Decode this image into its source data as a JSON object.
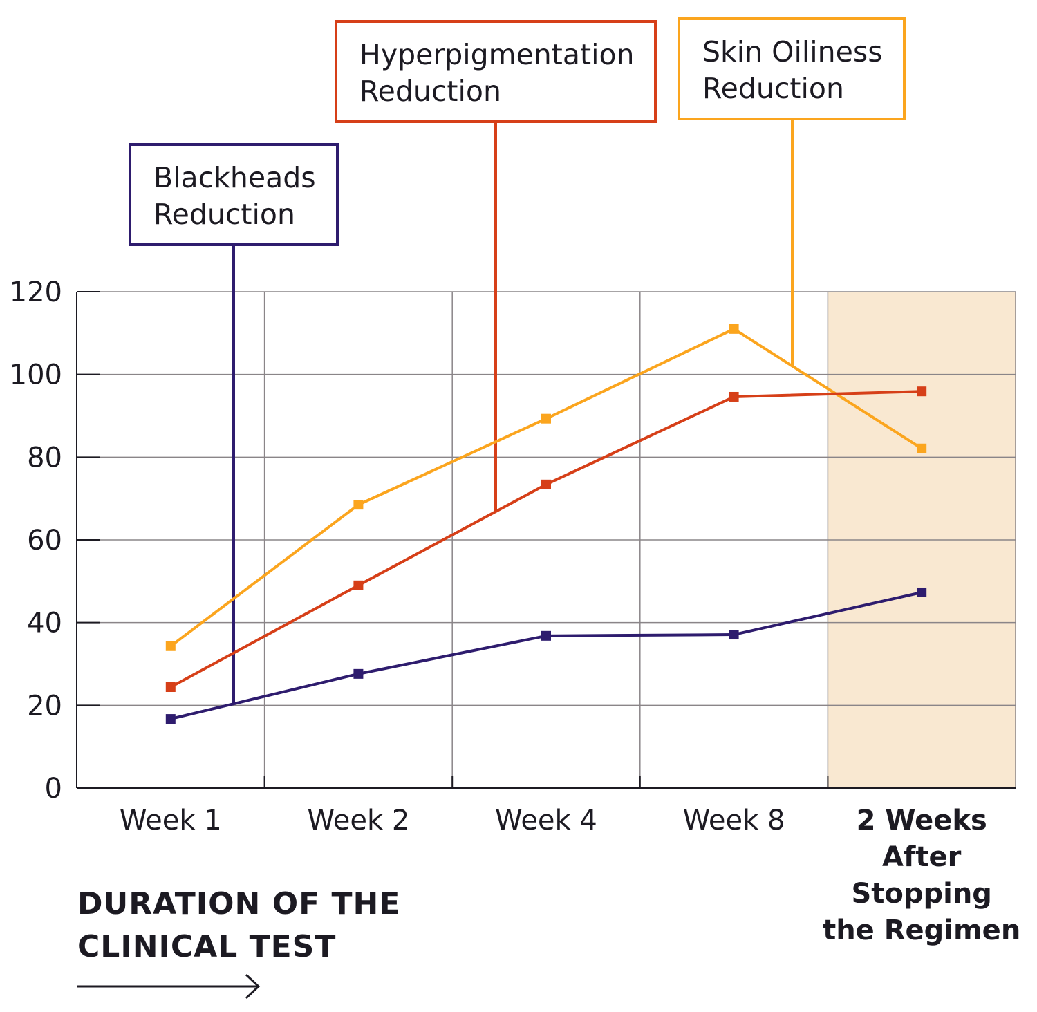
{
  "chart_data": {
    "type": "line",
    "title": "",
    "xlabel": "DURATION OF THE CLINICAL TEST",
    "ylabel": "",
    "ylim": [
      0,
      120
    ],
    "yticks": [
      0,
      20,
      40,
      60,
      80,
      100,
      120
    ],
    "grid": true,
    "categories": [
      "Week 1",
      "Week 2",
      "Week 4",
      "Week 8",
      "2 Weeks After Stopping the Regimen"
    ],
    "category_label_lines": [
      [
        "Week 1"
      ],
      [
        "Week 2"
      ],
      [
        "Week 4"
      ],
      [
        "Week 8"
      ],
      [
        "2 Weeks",
        "After",
        "Stopping",
        "the Regimen"
      ]
    ],
    "highlighted_category": "2 Weeks After Stopping the Regimen",
    "highlight_color": "#f9e8d1",
    "legend_placement": "callouts-top",
    "series": [
      {
        "name": "Skin Oiliness Reduction",
        "label_lines": [
          "Skin Oiliness",
          "Reduction"
        ],
        "color": "#fba51e",
        "values": [
          34.3,
          68.5,
          89.3,
          111,
          82.1
        ]
      },
      {
        "name": "Hyperpigmentation Reduction",
        "label_lines": [
          "Hyperpigmentation",
          "Reduction"
        ],
        "color": "#d63f18",
        "values": [
          24.4,
          49,
          73.4,
          94.6,
          95.9
        ]
      },
      {
        "name": "Blackheads Reduction",
        "label_lines": [
          "Blackheads",
          "Reduction"
        ],
        "color": "#2e1c6e",
        "values": [
          16.7,
          27.6,
          36.8,
          37.1,
          47.3
        ]
      }
    ]
  }
}
